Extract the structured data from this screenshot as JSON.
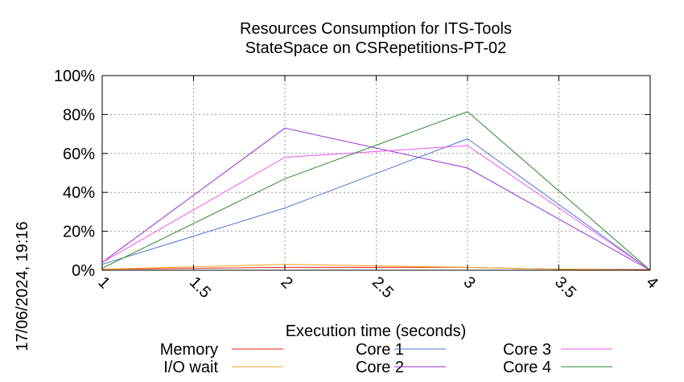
{
  "chart_data": {
    "type": "line",
    "title": "Resources Consumption for ITS-Tools",
    "subtitle": "StateSpace on CSRepetitions-PT-02",
    "xlabel": "Execution time (seconds)",
    "ylabel": "",
    "xlim": [
      1,
      4
    ],
    "ylim": [
      0,
      100
    ],
    "x_ticks": [
      "1",
      "1.5",
      "2",
      "2.5",
      "3",
      "3.5",
      "4"
    ],
    "y_ticks": [
      "0%",
      "20%",
      "40%",
      "60%",
      "80%",
      "100%"
    ],
    "grid": true,
    "legend_position": "bottom",
    "timestamp": "17/06/2024, 19:16",
    "series": [
      {
        "name": "Memory",
        "color": "#e8231a",
        "x": [
          1,
          2,
          3,
          3.5,
          4
        ],
        "y": [
          0.5,
          1.5,
          1.5,
          0.5,
          0.3
        ]
      },
      {
        "name": "I/O wait",
        "color": "#f5a21c",
        "x": [
          1,
          2,
          3,
          3.5,
          4
        ],
        "y": [
          0.5,
          3,
          1.5,
          0.5,
          0
        ]
      },
      {
        "name": "Core 1",
        "color": "#4a74d6",
        "x": [
          1,
          2,
          3,
          4
        ],
        "y": [
          3,
          32,
          67.5,
          0
        ]
      },
      {
        "name": "Core 2",
        "color": "#9a2fd9",
        "x": [
          1,
          2,
          3,
          4
        ],
        "y": [
          4,
          73,
          52.5,
          0
        ]
      },
      {
        "name": "Core 3",
        "color": "#ee55ee",
        "x": [
          1,
          2,
          3,
          4
        ],
        "y": [
          4,
          58,
          64,
          0
        ]
      },
      {
        "name": "Core 4",
        "color": "#2a8a2a",
        "x": [
          1,
          2,
          3,
          4
        ],
        "y": [
          1,
          47,
          81.5,
          0
        ]
      }
    ]
  }
}
